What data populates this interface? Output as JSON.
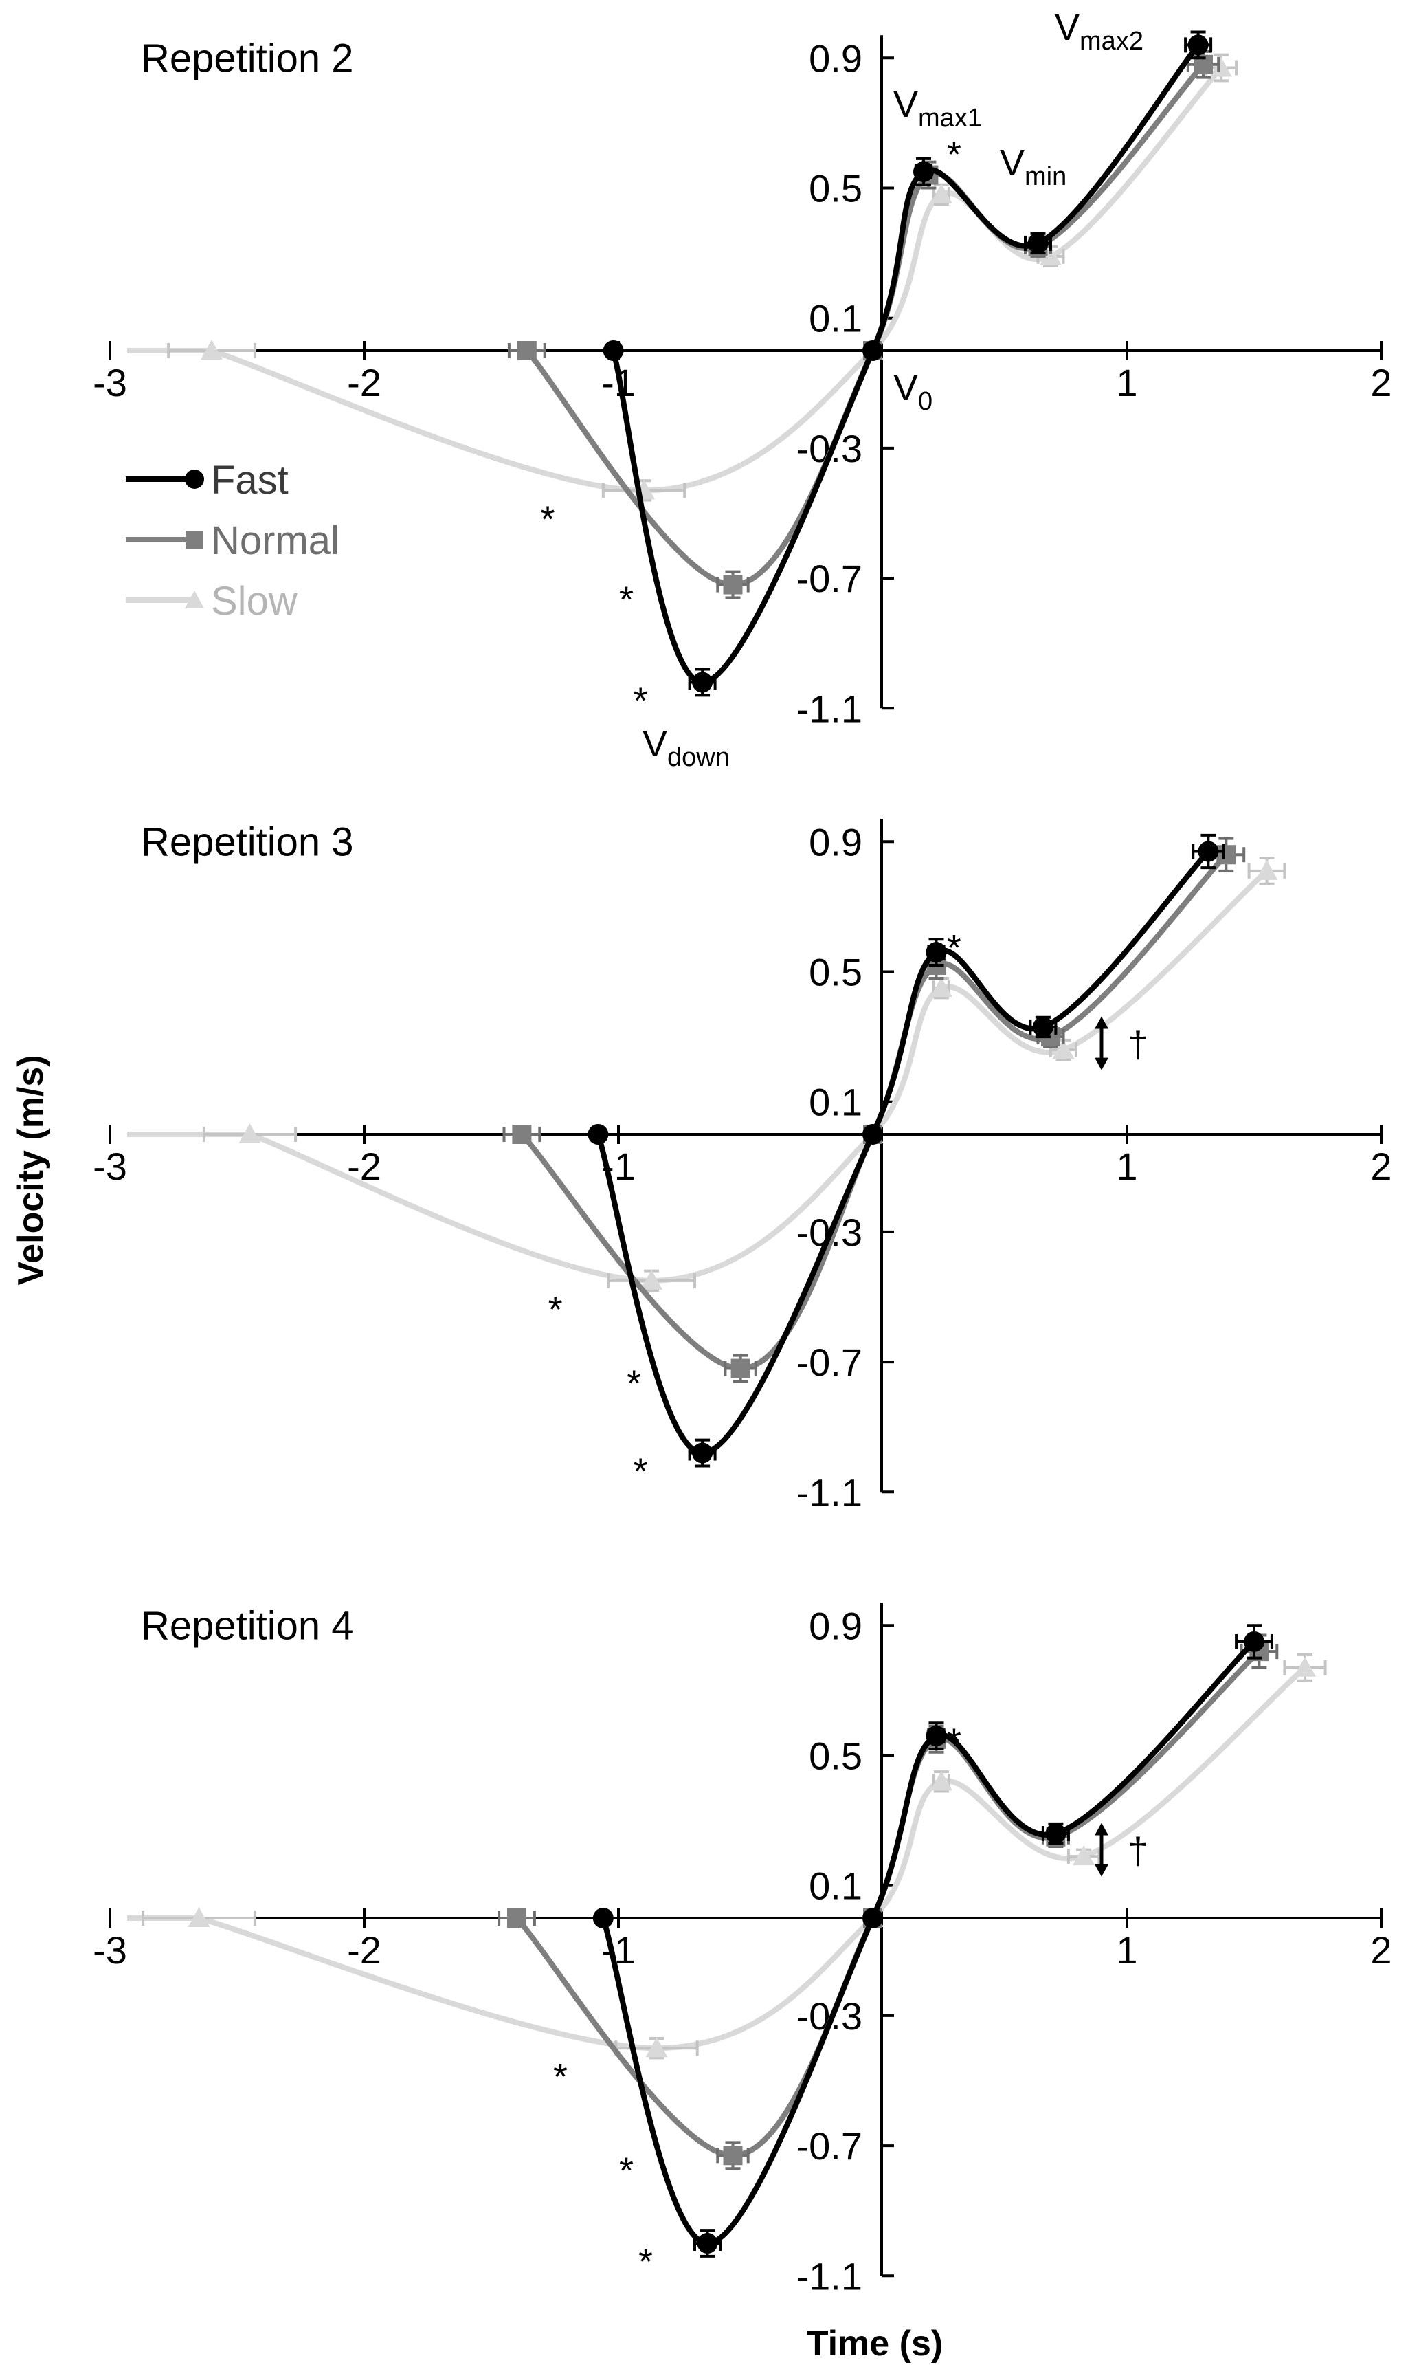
{
  "chart_data": {
    "type": "line",
    "xlabel": "Time (s)",
    "ylabel": "Velocity (m/s)",
    "xlim": [
      -3,
      2
    ],
    "ylim": [
      -1.1,
      0.9
    ],
    "xticks": [
      "-3",
      "-2",
      "-1",
      "1",
      "2"
    ],
    "yticks": [
      "0.9",
      "0.5",
      "0.1",
      "-0.3",
      "-0.7",
      "-1.1"
    ],
    "legend": [
      {
        "name": "Fast",
        "color": "#000000",
        "marker": "circle"
      },
      {
        "name": "Normal",
        "color": "#7f7f7f",
        "marker": "square"
      },
      {
        "name": "Slow",
        "color": "#d9d9d9",
        "marker": "triangle"
      }
    ],
    "panels": [
      {
        "title": "Repetition 2",
        "annotations": {
          "vmax1": "V",
          "vmax1_sub": "max1",
          "vmin": "V",
          "vmin_sub": "min",
          "vmax2": "V",
          "vmax2_sub": "max2",
          "v0": "V",
          "v0_sub": "0",
          "vdown": "V",
          "vdown_sub": "down"
        },
        "stars": [
          "*",
          "*",
          "*",
          "*"
        ],
        "dagger": "",
        "series": [
          {
            "name": "Fast",
            "x": [
              -1.02,
              -0.67,
              0,
              0.2,
              0.65,
              1.28
            ],
            "y": [
              0.0,
              -1.02,
              0.0,
              0.55,
              0.33,
              0.94
            ],
            "xerr": [
              0.0,
              0.05,
              0.0,
              0.03,
              0.05,
              0.05
            ],
            "yerr": [
              0.0,
              0.04,
              0.0,
              0.04,
              0.03,
              0.04
            ]
          },
          {
            "name": "Normal",
            "x": [
              -1.36,
              -0.55,
              0,
              0.22,
              0.65,
              1.3
            ],
            "y": [
              0.0,
              -0.72,
              0.0,
              0.54,
              0.32,
              0.88
            ],
            "xerr": [
              0.07,
              0.06,
              0.0,
              0.03,
              0.05,
              0.06
            ],
            "yerr": [
              0.0,
              0.04,
              0.0,
              0.04,
              0.03,
              0.04
            ]
          },
          {
            "name": "Slow",
            "x": [
              -2.6,
              -0.9,
              0,
              0.27,
              0.7,
              1.37
            ],
            "y": [
              0.0,
              -0.43,
              0.0,
              0.48,
              0.29,
              0.87
            ],
            "xerr": [
              0.17,
              0.16,
              0.0,
              0.03,
              0.05,
              0.06
            ],
            "yerr": [
              0.0,
              0.03,
              0.0,
              0.03,
              0.03,
              0.04
            ]
          }
        ]
      },
      {
        "title": "Repetition 3",
        "annotations": null,
        "stars": [
          "*",
          "*",
          "*",
          "*"
        ],
        "dagger": "†",
        "series": [
          {
            "name": "Fast",
            "x": [
              -1.08,
              -0.67,
              0,
              0.25,
              0.67,
              1.32
            ],
            "y": [
              0.0,
              -0.98,
              0.0,
              0.56,
              0.33,
              0.87
            ],
            "xerr": [
              0.0,
              0.05,
              0.0,
              0.03,
              0.05,
              0.06
            ],
            "yerr": [
              0.0,
              0.04,
              0.0,
              0.04,
              0.03,
              0.05
            ]
          },
          {
            "name": "Normal",
            "x": [
              -1.38,
              -0.52,
              0,
              0.25,
              0.7,
              1.39
            ],
            "y": [
              0.0,
              -0.72,
              0.0,
              0.52,
              0.3,
              0.86
            ],
            "xerr": [
              0.07,
              0.06,
              0.0,
              0.03,
              0.05,
              0.07
            ],
            "yerr": [
              0.0,
              0.04,
              0.0,
              0.04,
              0.03,
              0.05
            ]
          },
          {
            "name": "Slow",
            "x": [
              -2.45,
              -0.87,
              0,
              0.27,
              0.75,
              1.55
            ],
            "y": [
              0.0,
              -0.45,
              0.0,
              0.45,
              0.26,
              0.81
            ],
            "xerr": [
              0.18,
              0.17,
              0.0,
              0.03,
              0.05,
              0.07
            ],
            "yerr": [
              0.0,
              0.03,
              0.0,
              0.03,
              0.03,
              0.04
            ]
          }
        ]
      },
      {
        "title": "Repetition 4",
        "annotations": null,
        "stars": [
          "*",
          "*",
          "*",
          "*"
        ],
        "dagger": "†",
        "series": [
          {
            "name": "Fast",
            "x": [
              -1.06,
              -0.65,
              0,
              0.25,
              0.72,
              1.5
            ],
            "y": [
              0.0,
              -1.0,
              0.0,
              0.56,
              0.26,
              0.85
            ],
            "xerr": [
              0.0,
              0.05,
              0.0,
              0.03,
              0.05,
              0.07
            ],
            "yerr": [
              0.0,
              0.04,
              0.0,
              0.04,
              0.03,
              0.05
            ]
          },
          {
            "name": "Normal",
            "x": [
              -1.4,
              -0.55,
              0,
              0.25,
              0.72,
              1.52
            ],
            "y": [
              0.0,
              -0.73,
              0.0,
              0.55,
              0.25,
              0.82
            ],
            "xerr": [
              0.07,
              0.06,
              0.0,
              0.03,
              0.05,
              0.07
            ],
            "yerr": [
              0.0,
              0.04,
              0.0,
              0.04,
              0.03,
              0.05
            ]
          },
          {
            "name": "Slow",
            "x": [
              -2.65,
              -0.85,
              0,
              0.27,
              0.83,
              1.7
            ],
            "y": [
              0.0,
              -0.4,
              0.0,
              0.42,
              0.19,
              0.77
            ],
            "xerr": [
              0.22,
              0.16,
              0.0,
              0.03,
              0.06,
              0.08
            ],
            "yerr": [
              0.0,
              0.03,
              0.0,
              0.03,
              0.02,
              0.04
            ]
          }
        ]
      }
    ]
  }
}
